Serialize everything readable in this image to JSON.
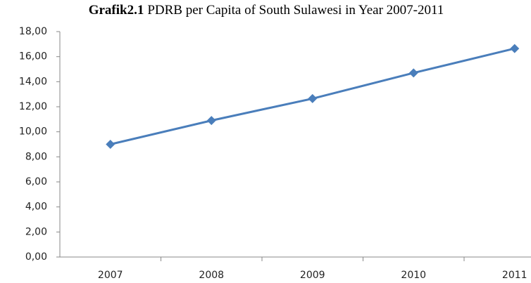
{
  "chart_data": {
    "type": "line",
    "title_label": "Grafik2.1",
    "title": "PDRB per Capita of South Sulawesi in Year 2007-2011",
    "categories": [
      "2007",
      "2008",
      "2009",
      "2010",
      "2011"
    ],
    "series": [
      {
        "color": "#4a7ebb",
        "values": [
          9.0,
          10.9,
          12.65,
          14.7,
          16.65
        ]
      }
    ],
    "ylim": [
      0,
      18
    ],
    "yticks": [
      {
        "value": 0,
        "label": "0,00"
      },
      {
        "value": 2,
        "label": "2,00"
      },
      {
        "value": 4,
        "label": "4,00"
      },
      {
        "value": 6,
        "label": "6,00"
      },
      {
        "value": 8,
        "label": "8,00"
      },
      {
        "value": 10,
        "label": "10,00"
      },
      {
        "value": 12,
        "label": "12,00"
      },
      {
        "value": 14,
        "label": "14,00"
      },
      {
        "value": 16,
        "label": "16,00"
      },
      {
        "value": 18,
        "label": "18,00"
      }
    ],
    "grid": false
  }
}
